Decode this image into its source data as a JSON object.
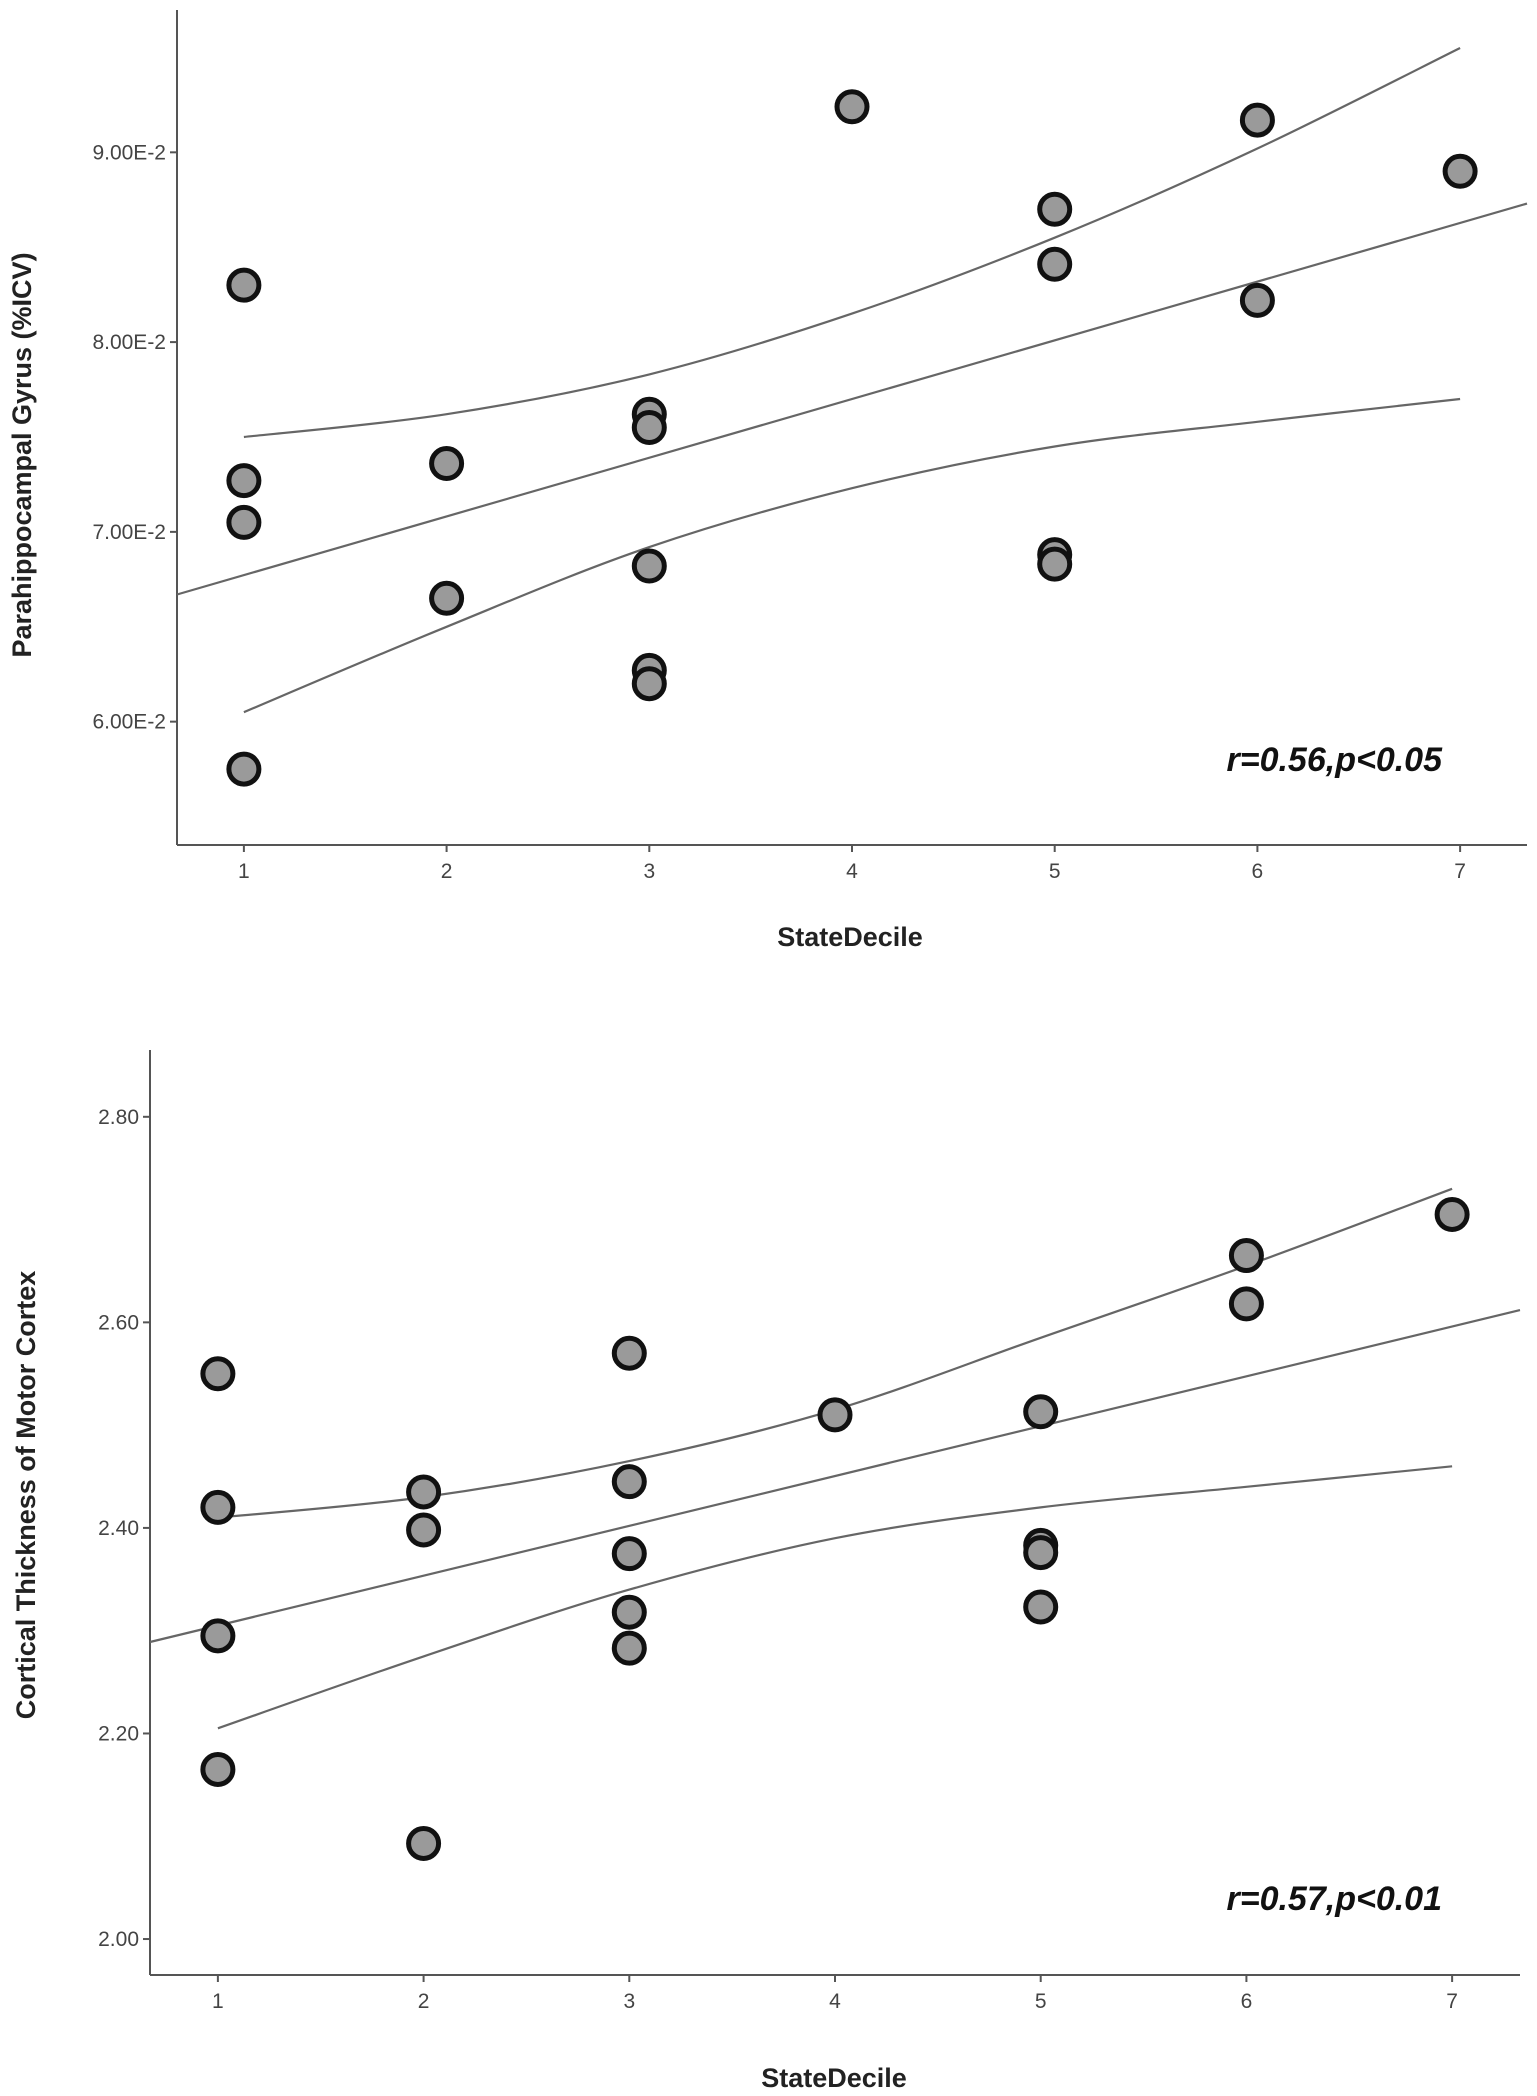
{
  "chart_data": [
    {
      "type": "scatter",
      "xlabel": "StateDecile",
      "ylabel": "Parahippocampal Gyrus (%ICV)",
      "annotation": "r=0.56,p<0.05",
      "xlim": [
        0.67,
        7.33
      ],
      "ylim": [
        0.0535,
        0.0975
      ],
      "x_ticks": [
        1,
        2,
        3,
        4,
        5,
        6,
        7
      ],
      "x_tick_labels": [
        "1",
        "2",
        "3",
        "4",
        "5",
        "6",
        "7"
      ],
      "y_ticks": [
        0.06,
        0.07,
        0.08,
        0.09
      ],
      "y_tick_labels": [
        "6.00E-2",
        "7.00E-2",
        "8.00E-2",
        "9.00E-2"
      ],
      "points": [
        {
          "x": 1,
          "y": 0.083
        },
        {
          "x": 1,
          "y": 0.0727
        },
        {
          "x": 1,
          "y": 0.0705
        },
        {
          "x": 1,
          "y": 0.0575
        },
        {
          "x": 2,
          "y": 0.0736
        },
        {
          "x": 2,
          "y": 0.0665
        },
        {
          "x": 3,
          "y": 0.0762
        },
        {
          "x": 3,
          "y": 0.0755
        },
        {
          "x": 3,
          "y": 0.0682
        },
        {
          "x": 3,
          "y": 0.0627
        },
        {
          "x": 3,
          "y": 0.062
        },
        {
          "x": 4,
          "y": 0.0924
        },
        {
          "x": 5,
          "y": 0.087
        },
        {
          "x": 5,
          "y": 0.0841
        },
        {
          "x": 5,
          "y": 0.0688
        },
        {
          "x": 5,
          "y": 0.0683
        },
        {
          "x": 6,
          "y": 0.0917
        },
        {
          "x": 6,
          "y": 0.0822
        },
        {
          "x": 7,
          "y": 0.089
        }
      ],
      "fit_line": {
        "x": [
          0.67,
          7.33
        ],
        "y": [
          0.0667,
          0.0873
        ]
      },
      "ci_upper": {
        "x": [
          1,
          2,
          3,
          4,
          5,
          6,
          7
        ],
        "y": [
          0.075,
          0.0762,
          0.0783,
          0.0815,
          0.0855,
          0.0902,
          0.0955
        ]
      },
      "ci_lower": {
        "x": [
          1,
          2,
          3,
          4,
          5,
          6,
          7
        ],
        "y": [
          0.0605,
          0.065,
          0.0692,
          0.0723,
          0.0745,
          0.0758,
          0.077
        ]
      }
    },
    {
      "type": "scatter",
      "xlabel": "StateDecile",
      "ylabel": "Cortical Thickness of Motor Cortex",
      "annotation": "r=0.57,p<0.01",
      "xlim": [
        0.67,
        7.33
      ],
      "ylim": [
        1.965,
        2.865
      ],
      "x_ticks": [
        1,
        2,
        3,
        4,
        5,
        6,
        7
      ],
      "x_tick_labels": [
        "1",
        "2",
        "3",
        "4",
        "5",
        "6",
        "7"
      ],
      "y_ticks": [
        2.0,
        2.2,
        2.4,
        2.6,
        2.8
      ],
      "y_tick_labels": [
        "2.00",
        "2.20",
        "2.40",
        "2.60",
        "2.80"
      ],
      "points": [
        {
          "x": 1,
          "y": 2.55
        },
        {
          "x": 1,
          "y": 2.42
        },
        {
          "x": 1,
          "y": 2.295
        },
        {
          "x": 1,
          "y": 2.165
        },
        {
          "x": 2,
          "y": 2.435
        },
        {
          "x": 2,
          "y": 2.398
        },
        {
          "x": 2,
          "y": 2.093
        },
        {
          "x": 3,
          "y": 2.57
        },
        {
          "x": 3,
          "y": 2.445
        },
        {
          "x": 3,
          "y": 2.375
        },
        {
          "x": 3,
          "y": 2.318
        },
        {
          "x": 3,
          "y": 2.283
        },
        {
          "x": 4,
          "y": 2.51
        },
        {
          "x": 5,
          "y": 2.513
        },
        {
          "x": 5,
          "y": 2.383
        },
        {
          "x": 5,
          "y": 2.376
        },
        {
          "x": 5,
          "y": 2.323
        },
        {
          "x": 6,
          "y": 2.665
        },
        {
          "x": 6,
          "y": 2.618
        },
        {
          "x": 7,
          "y": 2.705
        }
      ],
      "fit_line": {
        "x": [
          0.67,
          7.33
        ],
        "y": [
          2.289,
          2.612
        ]
      },
      "ci_upper": {
        "x": [
          1,
          2,
          3,
          4,
          5,
          6,
          7
        ],
        "y": [
          2.41,
          2.43,
          2.465,
          2.515,
          2.585,
          2.655,
          2.73
        ]
      },
      "ci_lower": {
        "x": [
          1,
          2,
          3,
          4,
          5,
          6,
          7
        ],
        "y": [
          2.205,
          2.275,
          2.34,
          2.39,
          2.42,
          2.44,
          2.46
        ]
      }
    }
  ]
}
